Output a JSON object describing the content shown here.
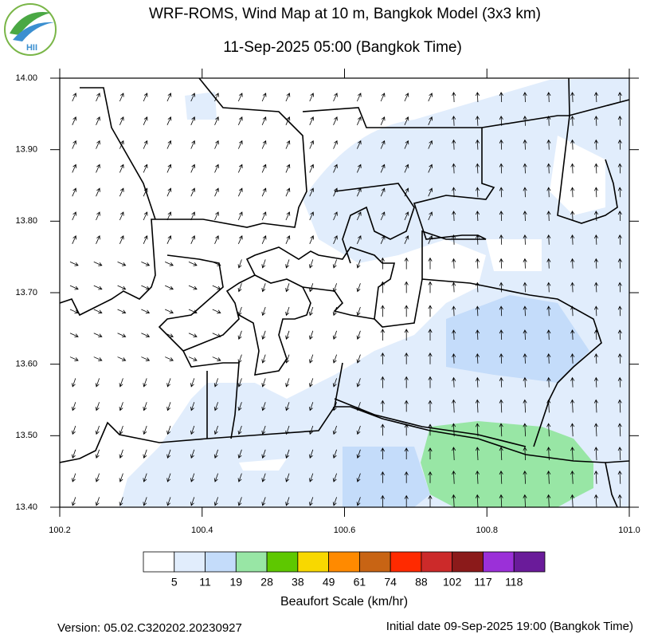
{
  "header": {
    "title": "WRF-ROMS, Wind Map at 10 m, Bangkok Model (3x3 km)",
    "subtitle": "11-Sep-2025 05:00 (Bangkok Time)",
    "logo_text": "HII"
  },
  "map": {
    "lon_labels": [
      "100.2",
      "100.4",
      "100.6",
      "100.8",
      "101.0"
    ],
    "lat_labels": [
      "14.00",
      "13.90",
      "13.80",
      "13.70",
      "13.60",
      "13.50",
      "13.40"
    ]
  },
  "legend": {
    "title": "Beaufort Scale (km/hr)",
    "colors": [
      "#ffffff",
      "#e1edfc",
      "#c4dcfa",
      "#98e6a5",
      "#5ec800",
      "#f8d800",
      "#ff8a00",
      "#c86414",
      "#ff2a00",
      "#cc2a2a",
      "#8b1a1a",
      "#9b30d8",
      "#6a1b9a"
    ],
    "labels": [
      "5",
      "11",
      "19",
      "28",
      "38",
      "49",
      "61",
      "74",
      "88",
      "102",
      "117",
      "118"
    ]
  },
  "footer": {
    "version": "Version: 05.02.C320202.20230927",
    "initial_date": "Initial date 09-Sep-2025 19:00 (Bangkok Time)"
  }
}
